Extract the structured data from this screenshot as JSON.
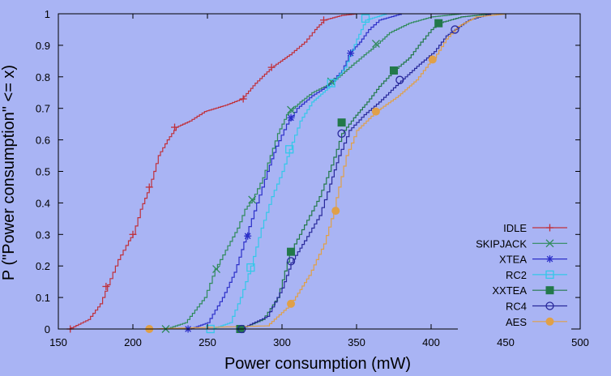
{
  "chart_data": {
    "type": "line",
    "title": "",
    "xlabel": "Power consumption (mW)",
    "ylabel": "P (\"Power consumption\" <= x)",
    "xlim": [
      150,
      500
    ],
    "ylim": [
      0,
      1
    ],
    "xticks": [
      "150",
      "200",
      "250",
      "300",
      "350",
      "400",
      "450",
      "500"
    ],
    "yticks": [
      "0",
      "0.1",
      "0.2",
      "0.3",
      "0.4",
      "0.5",
      "0.6",
      "0.7",
      "0.8",
      "0.9",
      "1"
    ],
    "grid": false,
    "legend_position": "bottom-right",
    "series": [
      {
        "name": "IDLE",
        "color": "#c0303a",
        "marker": "plus",
        "points": [
          [
            157,
            0
          ],
          [
            170,
            0.03
          ],
          [
            178,
            0.08
          ],
          [
            183,
            0.14
          ],
          [
            190,
            0.22
          ],
          [
            197,
            0.28
          ],
          [
            200,
            0.3
          ],
          [
            205,
            0.38
          ],
          [
            211,
            0.45
          ],
          [
            217,
            0.55
          ],
          [
            223,
            0.6
          ],
          [
            229,
            0.64
          ],
          [
            238,
            0.66
          ],
          [
            248,
            0.69
          ],
          [
            262,
            0.71
          ],
          [
            273,
            0.73
          ],
          [
            282,
            0.78
          ],
          [
            293,
            0.83
          ],
          [
            305,
            0.87
          ],
          [
            315,
            0.91
          ],
          [
            322,
            0.95
          ],
          [
            328,
            0.98
          ],
          [
            340,
            0.995
          ],
          [
            350,
            1
          ]
        ],
        "markers": [
          [
            158,
            0
          ],
          [
            182,
            0.135
          ],
          [
            200,
            0.3
          ],
          [
            211,
            0.45
          ],
          [
            228,
            0.64
          ],
          [
            274,
            0.73
          ],
          [
            293,
            0.83
          ],
          [
            328,
            0.98
          ]
        ]
      },
      {
        "name": "SKIPJACK",
        "color": "#2f8a5a",
        "marker": "cross",
        "points": [
          [
            222,
            0
          ],
          [
            235,
            0.02
          ],
          [
            248,
            0.1
          ],
          [
            255,
            0.19
          ],
          [
            262,
            0.25
          ],
          [
            270,
            0.32
          ],
          [
            275,
            0.38
          ],
          [
            280,
            0.41
          ],
          [
            287,
            0.48
          ],
          [
            292,
            0.55
          ],
          [
            297,
            0.62
          ],
          [
            303,
            0.68
          ],
          [
            312,
            0.72
          ],
          [
            320,
            0.75
          ],
          [
            333,
            0.78
          ],
          [
            345,
            0.83
          ],
          [
            355,
            0.87
          ],
          [
            363,
            0.9
          ],
          [
            372,
            0.94
          ],
          [
            385,
            0.97
          ],
          [
            400,
            0.99
          ],
          [
            420,
            1
          ]
        ],
        "markers": [
          [
            222,
            0
          ],
          [
            256,
            0.19
          ],
          [
            280,
            0.41
          ],
          [
            306,
            0.695
          ],
          [
            333,
            0.785
          ],
          [
            363,
            0.905
          ]
        ]
      },
      {
        "name": "XTEA",
        "color": "#2c2fc8",
        "marker": "star",
        "points": [
          [
            238,
            0
          ],
          [
            250,
            0.02
          ],
          [
            260,
            0.1
          ],
          [
            268,
            0.18
          ],
          [
            276,
            0.3
          ],
          [
            283,
            0.4
          ],
          [
            290,
            0.5
          ],
          [
            296,
            0.58
          ],
          [
            303,
            0.65
          ],
          [
            310,
            0.7
          ],
          [
            320,
            0.74
          ],
          [
            330,
            0.77
          ],
          [
            340,
            0.82
          ],
          [
            346,
            0.88
          ],
          [
            352,
            0.91
          ],
          [
            358,
            0.95
          ],
          [
            365,
            0.98
          ],
          [
            380,
            1
          ]
        ],
        "markers": [
          [
            237,
            0
          ],
          [
            277,
            0.295
          ],
          [
            306,
            0.67
          ],
          [
            346,
            0.875
          ]
        ]
      },
      {
        "name": "RC2",
        "color": "#34c8e8",
        "marker": "square",
        "points": [
          [
            253,
            0
          ],
          [
            265,
            0.02
          ],
          [
            272,
            0.1
          ],
          [
            279,
            0.2
          ],
          [
            286,
            0.32
          ],
          [
            293,
            0.42
          ],
          [
            300,
            0.5
          ],
          [
            305,
            0.57
          ],
          [
            312,
            0.66
          ],
          [
            320,
            0.72
          ],
          [
            332,
            0.77
          ],
          [
            342,
            0.83
          ],
          [
            350,
            0.92
          ],
          [
            356,
            0.98
          ],
          [
            370,
            1
          ]
        ],
        "markers": [
          [
            252,
            0
          ],
          [
            279,
            0.195
          ],
          [
            305,
            0.57
          ],
          [
            333,
            0.78
          ],
          [
            356,
            0.985
          ]
        ]
      },
      {
        "name": "XXTEA",
        "color": "#22784a",
        "marker": "filled-square",
        "points": [
          [
            272,
            0
          ],
          [
            287,
            0.03
          ],
          [
            297,
            0.1
          ],
          [
            305,
            0.24
          ],
          [
            315,
            0.33
          ],
          [
            325,
            0.42
          ],
          [
            333,
            0.52
          ],
          [
            340,
            0.62
          ],
          [
            348,
            0.67
          ],
          [
            357,
            0.72
          ],
          [
            365,
            0.77
          ],
          [
            375,
            0.82
          ],
          [
            385,
            0.86
          ],
          [
            393,
            0.91
          ],
          [
            400,
            0.95
          ],
          [
            405,
            0.97
          ],
          [
            420,
            0.99
          ],
          [
            440,
            1
          ]
        ],
        "markers": [
          [
            272,
            0
          ],
          [
            306,
            0.245
          ],
          [
            340,
            0.655
          ],
          [
            375,
            0.82
          ],
          [
            405,
            0.97
          ]
        ]
      },
      {
        "name": "RC4",
        "color": "#28289a",
        "marker": "circle",
        "points": [
          [
            272,
            0
          ],
          [
            290,
            0.04
          ],
          [
            300,
            0.13
          ],
          [
            306,
            0.21
          ],
          [
            315,
            0.28
          ],
          [
            325,
            0.36
          ],
          [
            332,
            0.46
          ],
          [
            338,
            0.55
          ],
          [
            345,
            0.63
          ],
          [
            355,
            0.68
          ],
          [
            365,
            0.72
          ],
          [
            378,
            0.78
          ],
          [
            392,
            0.84
          ],
          [
            402,
            0.88
          ],
          [
            410,
            0.93
          ],
          [
            416,
            0.95
          ],
          [
            425,
            0.98
          ],
          [
            440,
            1
          ]
        ],
        "markers": [
          [
            273,
            0
          ],
          [
            306,
            0.215
          ],
          [
            340,
            0.62
          ],
          [
            379,
            0.79
          ],
          [
            416,
            0.95
          ]
        ]
      },
      {
        "name": "AES",
        "color": "#e0a048",
        "marker": "filled-circle",
        "points": [
          [
            210,
            0
          ],
          [
            290,
            0.01
          ],
          [
            306,
            0.08
          ],
          [
            318,
            0.17
          ],
          [
            328,
            0.27
          ],
          [
            333,
            0.35
          ],
          [
            338,
            0.45
          ],
          [
            343,
            0.55
          ],
          [
            350,
            0.63
          ],
          [
            363,
            0.69
          ],
          [
            378,
            0.74
          ],
          [
            390,
            0.79
          ],
          [
            398,
            0.84
          ],
          [
            402,
            0.86
          ],
          [
            410,
            0.92
          ],
          [
            418,
            0.96
          ],
          [
            430,
            0.99
          ],
          [
            450,
            1
          ]
        ],
        "markers": [
          [
            211,
            0
          ],
          [
            306,
            0.08
          ],
          [
            336,
            0.375
          ],
          [
            363,
            0.69
          ],
          [
            401,
            0.855
          ]
        ]
      }
    ]
  }
}
